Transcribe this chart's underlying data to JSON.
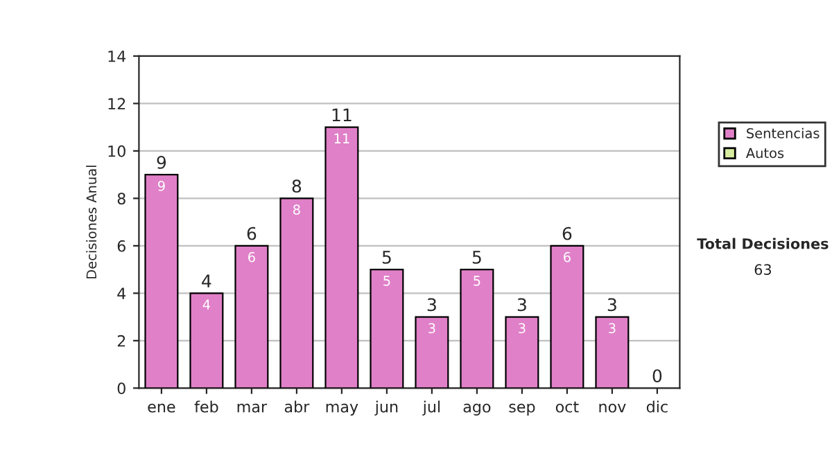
{
  "chart_data": {
    "type": "bar",
    "stacked": true,
    "ylabel": "Decisiones Anual",
    "categories": [
      "ene",
      "feb",
      "mar",
      "abr",
      "may",
      "jun",
      "jul",
      "ago",
      "sep",
      "oct",
      "nov",
      "dic"
    ],
    "series": [
      {
        "name": "Sentencias",
        "color": "#e080c8",
        "values": [
          9,
          4,
          6,
          8,
          11,
          5,
          3,
          5,
          3,
          6,
          3,
          0
        ],
        "value_labels": [
          "9",
          "4",
          "6",
          "8",
          "11",
          "5",
          "3",
          "5",
          "3",
          "6",
          "3",
          null
        ]
      },
      {
        "name": "Autos",
        "color": "#d8eca0",
        "values": [
          0,
          0,
          0,
          0,
          0,
          0,
          0,
          0,
          0,
          0,
          0,
          0
        ]
      }
    ],
    "totals": [
      "9",
      "4",
      "6",
      "8",
      "11",
      "5",
      "3",
      "5",
      "3",
      "6",
      "3",
      "0"
    ],
    "ylim": [
      0,
      14
    ],
    "yticks": [
      0,
      2,
      4,
      6,
      8,
      10,
      12,
      14
    ],
    "grid": "y",
    "legend": "right",
    "annotations": [
      "Total Decisiones",
      "63"
    ]
  }
}
